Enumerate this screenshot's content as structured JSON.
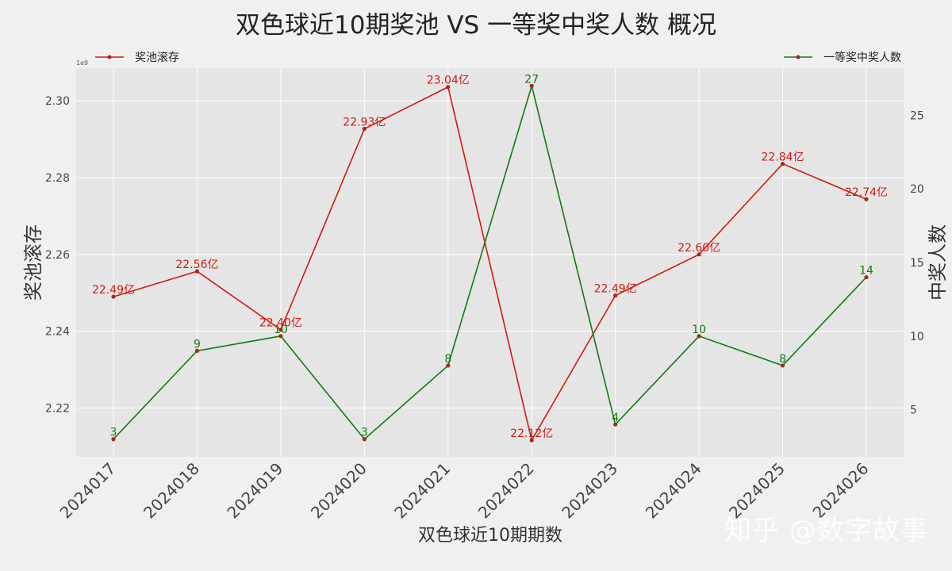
{
  "chart_data": {
    "type": "line",
    "title": "双色球近10期奖池 VS 一等奖中奖人数 概况",
    "xlabel": "双色球近10期期数",
    "ylabel_left": "奖池滚存",
    "ylabel_right": "中奖人数",
    "left_axis_multiplier_label": "1e9",
    "categories": [
      "2024017",
      "2024018",
      "2024019",
      "2024020",
      "2024021",
      "2024022",
      "2024023",
      "2024024",
      "2024025",
      "2024026"
    ],
    "ylim_left": [
      2.2073,
      2.3085
    ],
    "yticks_left": [
      "2.22",
      "2.24",
      "2.26",
      "2.28",
      "2.30"
    ],
    "ytick_values_left": [
      2.22,
      2.24,
      2.26,
      2.28,
      2.3
    ],
    "ylim_right": [
      1.8,
      28.2
    ],
    "yticks_right": [
      "5",
      "10",
      "15",
      "20",
      "25"
    ],
    "ytick_values_right": [
      5,
      10,
      15,
      20,
      25
    ],
    "grid": true,
    "series": [
      {
        "name": "奖池滚存",
        "axis": "left",
        "color": "#d11a12",
        "values": [
          2.249,
          2.2556,
          2.2404,
          2.2927,
          2.3036,
          2.2116,
          2.2493,
          2.26,
          2.2836,
          2.2744
        ],
        "labels": [
          "22.49亿",
          "22.56亿",
          "22.40亿",
          "22.93亿",
          "23.04亿",
          "22.12亿",
          "22.49亿",
          "22.60亿",
          "22.84亿",
          "22.74亿"
        ]
      },
      {
        "name": "一等奖中奖人数",
        "axis": "right",
        "color": "#127a12",
        "values": [
          3,
          9,
          10,
          3,
          8,
          27,
          4,
          10,
          8,
          14
        ],
        "labels": [
          "3",
          "9",
          "10",
          "3",
          "8",
          "27",
          "4",
          "10",
          "8",
          "14"
        ]
      }
    ],
    "marker_color": "#a62a1a",
    "legend_placement": [
      "top-left",
      "top-right"
    ]
  },
  "watermark": "知乎 @数字故事"
}
